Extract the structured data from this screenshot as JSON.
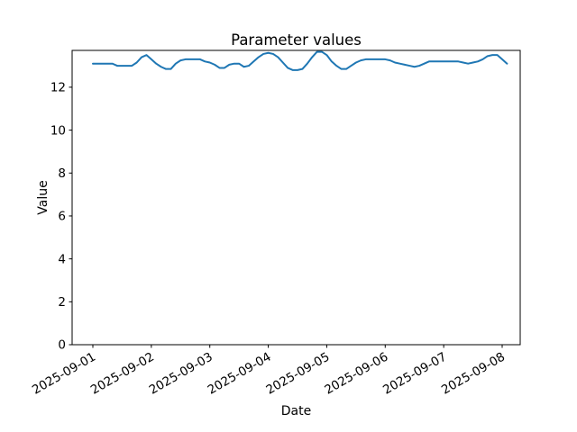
{
  "chart_data": {
    "type": "line",
    "title": "Parameter values",
    "xlabel": "Date",
    "ylabel": "Value",
    "x_tick_labels": [
      "2025-09-01",
      "2025-09-02",
      "2025-09-03",
      "2025-09-04",
      "2025-09-05",
      "2025-09-06",
      "2025-09-07",
      "2025-09-08"
    ],
    "y_ticks": [
      0,
      2,
      4,
      6,
      8,
      10,
      12
    ],
    "ylim": [
      0,
      13.716
    ],
    "xlim_days": [
      -0.3546,
      7.3084
    ],
    "grid": false,
    "legend": "none",
    "background_color": "#ffffff",
    "spine_color": "#000000",
    "series": [
      {
        "color": "#1f77b4",
        "x_start": "2025-09-01 00:00",
        "step_hours": 2,
        "values": [
          13.1,
          13.1,
          13.1,
          13.1,
          13.1,
          13.0,
          13.0,
          13.0,
          13.0,
          13.15,
          13.4,
          13.5,
          13.3,
          13.1,
          12.95,
          12.85,
          12.85,
          13.1,
          13.25,
          13.3,
          13.3,
          13.3,
          13.3,
          13.2,
          13.15,
          13.05,
          12.9,
          12.9,
          13.05,
          13.1,
          13.1,
          12.95,
          13.0,
          13.2,
          13.4,
          13.55,
          13.6,
          13.55,
          13.4,
          13.15,
          12.9,
          12.8,
          12.8,
          12.85,
          13.1,
          13.4,
          13.65,
          13.65,
          13.5,
          13.2,
          13.0,
          12.85,
          12.85,
          13.0,
          13.15,
          13.25,
          13.3,
          13.3,
          13.3,
          13.3,
          13.3,
          13.25,
          13.15,
          13.1,
          13.05,
          13.0,
          12.95,
          13.0,
          13.1,
          13.2,
          13.2,
          13.2,
          13.2,
          13.2,
          13.2,
          13.2,
          13.15,
          13.1,
          13.15,
          13.2,
          13.3,
          13.45,
          13.5,
          13.5,
          13.3,
          13.1
        ]
      }
    ]
  }
}
